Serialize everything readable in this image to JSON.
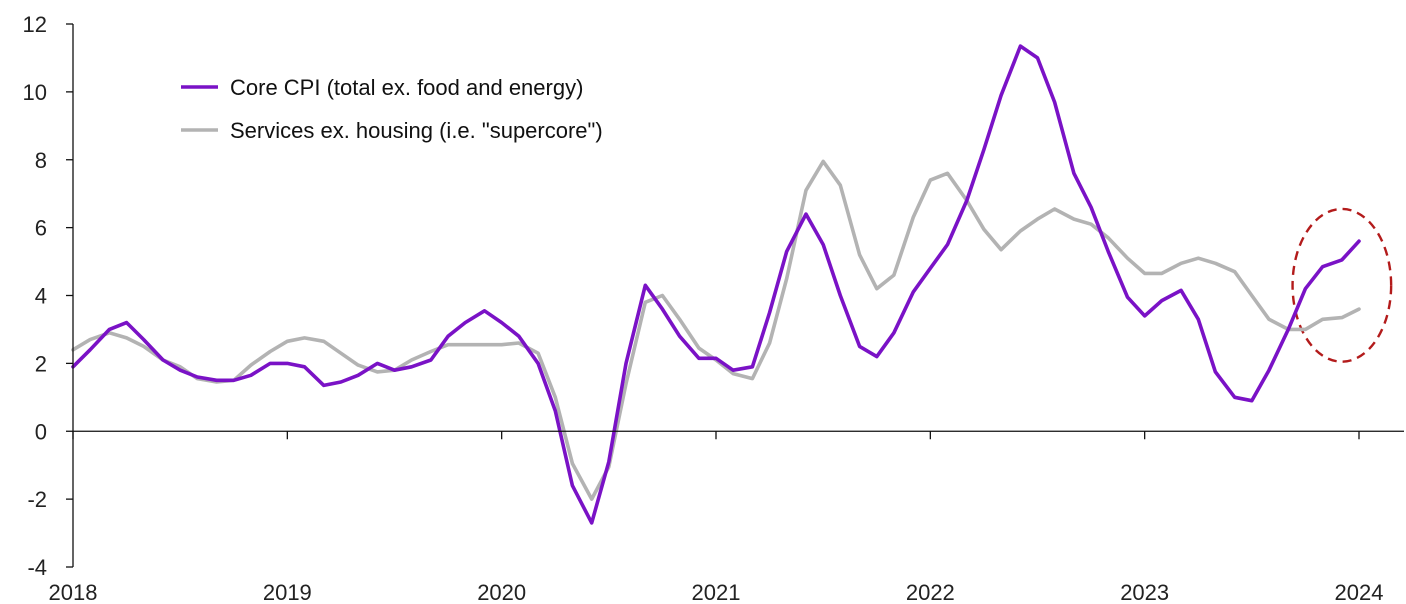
{
  "chart_data": {
    "type": "line",
    "title": "",
    "xlabel": "",
    "ylabel": "",
    "ylim": [
      -4,
      12
    ],
    "yticks": [
      -4,
      -2,
      0,
      2,
      4,
      6,
      8,
      10,
      12
    ],
    "xlim": [
      2018,
      2024.17
    ],
    "xticks": [
      "2018",
      "2019",
      "2020",
      "2021",
      "2022",
      "2023",
      "2024"
    ],
    "grid": false,
    "legend_position": "top-left",
    "annotation": {
      "shape": "dashed-ellipse",
      "color": "#b31b1b",
      "center": [
        2023.92,
        4.3
      ],
      "semi_axes": [
        0.23,
        2.25
      ]
    },
    "series": [
      {
        "name": "Core CPI (total ex. food and energy)",
        "color": "#7a12c6",
        "points": [
          [
            2018.0,
            1.9
          ],
          [
            2018.08,
            2.4
          ],
          [
            2018.17,
            3.0
          ],
          [
            2018.25,
            3.2
          ],
          [
            2018.33,
            2.7
          ],
          [
            2018.42,
            2.1
          ],
          [
            2018.5,
            1.8
          ],
          [
            2018.58,
            1.6
          ],
          [
            2018.67,
            1.5
          ],
          [
            2018.75,
            1.5
          ],
          [
            2018.83,
            1.65
          ],
          [
            2018.92,
            2.0
          ],
          [
            2019.0,
            2.0
          ],
          [
            2019.08,
            1.9
          ],
          [
            2019.17,
            1.35
          ],
          [
            2019.25,
            1.45
          ],
          [
            2019.33,
            1.65
          ],
          [
            2019.42,
            2.0
          ],
          [
            2019.5,
            1.8
          ],
          [
            2019.58,
            1.9
          ],
          [
            2019.67,
            2.1
          ],
          [
            2019.75,
            2.8
          ],
          [
            2019.83,
            3.2
          ],
          [
            2019.92,
            3.55
          ],
          [
            2020.0,
            3.2
          ],
          [
            2020.08,
            2.8
          ],
          [
            2020.17,
            2.0
          ],
          [
            2020.25,
            0.6
          ],
          [
            2020.33,
            -1.6
          ],
          [
            2020.42,
            -2.7
          ],
          [
            2020.5,
            -0.9
          ],
          [
            2020.58,
            2.0
          ],
          [
            2020.67,
            4.3
          ],
          [
            2020.75,
            3.6
          ],
          [
            2020.83,
            2.8
          ],
          [
            2020.92,
            2.15
          ],
          [
            2021.0,
            2.15
          ],
          [
            2021.08,
            1.8
          ],
          [
            2021.17,
            1.9
          ],
          [
            2021.25,
            3.5
          ],
          [
            2021.33,
            5.3
          ],
          [
            2021.42,
            6.4
          ],
          [
            2021.5,
            5.5
          ],
          [
            2021.58,
            4.0
          ],
          [
            2021.67,
            2.5
          ],
          [
            2021.75,
            2.2
          ],
          [
            2021.83,
            2.9
          ],
          [
            2021.92,
            4.1
          ],
          [
            2022.0,
            4.8
          ],
          [
            2022.08,
            5.5
          ],
          [
            2022.17,
            6.8
          ],
          [
            2022.25,
            8.3
          ],
          [
            2022.33,
            9.9
          ],
          [
            2022.42,
            11.35
          ],
          [
            2022.5,
            11.0
          ],
          [
            2022.58,
            9.7
          ],
          [
            2022.67,
            7.6
          ],
          [
            2022.75,
            6.6
          ],
          [
            2022.83,
            5.3
          ],
          [
            2022.92,
            3.95
          ],
          [
            2023.0,
            3.4
          ],
          [
            2023.08,
            3.85
          ],
          [
            2023.17,
            4.15
          ],
          [
            2023.25,
            3.3
          ],
          [
            2023.33,
            1.75
          ],
          [
            2023.42,
            1.0
          ],
          [
            2023.5,
            0.9
          ],
          [
            2023.58,
            1.8
          ],
          [
            2023.67,
            3.0
          ],
          [
            2023.75,
            4.2
          ],
          [
            2023.83,
            4.85
          ],
          [
            2023.92,
            5.05
          ],
          [
            2024.0,
            5.6
          ]
        ]
      },
      {
        "name": "Services ex. housing (i.e. \"supercore\")",
        "color": "#b3b3b3",
        "points": [
          [
            2018.0,
            2.4
          ],
          [
            2018.08,
            2.7
          ],
          [
            2018.17,
            2.9
          ],
          [
            2018.25,
            2.75
          ],
          [
            2018.33,
            2.5
          ],
          [
            2018.42,
            2.1
          ],
          [
            2018.5,
            1.9
          ],
          [
            2018.58,
            1.55
          ],
          [
            2018.67,
            1.45
          ],
          [
            2018.75,
            1.5
          ],
          [
            2018.83,
            1.95
          ],
          [
            2018.92,
            2.35
          ],
          [
            2019.0,
            2.65
          ],
          [
            2019.08,
            2.75
          ],
          [
            2019.17,
            2.65
          ],
          [
            2019.25,
            2.3
          ],
          [
            2019.33,
            1.95
          ],
          [
            2019.42,
            1.75
          ],
          [
            2019.5,
            1.8
          ],
          [
            2019.58,
            2.1
          ],
          [
            2019.67,
            2.35
          ],
          [
            2019.75,
            2.55
          ],
          [
            2019.83,
            2.55
          ],
          [
            2019.92,
            2.55
          ],
          [
            2020.0,
            2.55
          ],
          [
            2020.08,
            2.6
          ],
          [
            2020.17,
            2.3
          ],
          [
            2020.25,
            1.0
          ],
          [
            2020.33,
            -0.95
          ],
          [
            2020.42,
            -2.0
          ],
          [
            2020.5,
            -1.05
          ],
          [
            2020.58,
            1.4
          ],
          [
            2020.67,
            3.8
          ],
          [
            2020.75,
            4.0
          ],
          [
            2020.83,
            3.3
          ],
          [
            2020.92,
            2.45
          ],
          [
            2021.0,
            2.1
          ],
          [
            2021.08,
            1.7
          ],
          [
            2021.17,
            1.55
          ],
          [
            2021.25,
            2.6
          ],
          [
            2021.33,
            4.5
          ],
          [
            2021.42,
            7.1
          ],
          [
            2021.5,
            7.95
          ],
          [
            2021.58,
            7.25
          ],
          [
            2021.67,
            5.2
          ],
          [
            2021.75,
            4.2
          ],
          [
            2021.83,
            4.6
          ],
          [
            2021.92,
            6.3
          ],
          [
            2022.0,
            7.4
          ],
          [
            2022.08,
            7.6
          ],
          [
            2022.17,
            6.8
          ],
          [
            2022.25,
            5.95
          ],
          [
            2022.33,
            5.35
          ],
          [
            2022.42,
            5.9
          ],
          [
            2022.5,
            6.25
          ],
          [
            2022.58,
            6.55
          ],
          [
            2022.67,
            6.25
          ],
          [
            2022.75,
            6.1
          ],
          [
            2022.83,
            5.7
          ],
          [
            2022.92,
            5.1
          ],
          [
            2023.0,
            4.65
          ],
          [
            2023.08,
            4.65
          ],
          [
            2023.17,
            4.95
          ],
          [
            2023.25,
            5.1
          ],
          [
            2023.33,
            4.95
          ],
          [
            2023.42,
            4.7
          ],
          [
            2023.5,
            4.0
          ],
          [
            2023.58,
            3.3
          ],
          [
            2023.67,
            3.0
          ],
          [
            2023.75,
            3.0
          ],
          [
            2023.83,
            3.3
          ],
          [
            2023.92,
            3.35
          ],
          [
            2024.0,
            3.6
          ]
        ]
      }
    ]
  }
}
